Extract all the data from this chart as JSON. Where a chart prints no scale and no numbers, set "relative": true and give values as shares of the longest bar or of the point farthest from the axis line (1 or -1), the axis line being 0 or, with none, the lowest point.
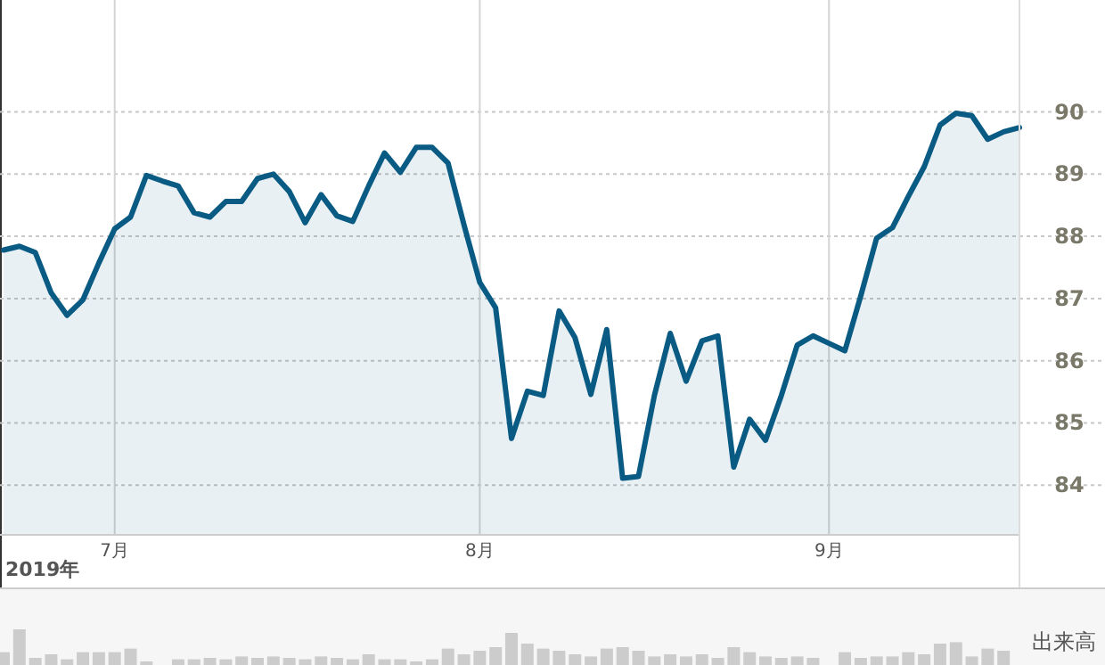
{
  "chart_data": [
    {
      "type": "area",
      "xlabel": "2019年",
      "categories": [
        null,
        null,
        null,
        null,
        null,
        null,
        null,
        "7月",
        null,
        null,
        null,
        null,
        null,
        null,
        null,
        null,
        null,
        null,
        null,
        null,
        null,
        null,
        null,
        null,
        null,
        null,
        null,
        null,
        null,
        null,
        "8月",
        null,
        null,
        null,
        null,
        null,
        null,
        null,
        null,
        null,
        null,
        null,
        null,
        null,
        null,
        null,
        null,
        null,
        null,
        null,
        null,
        null,
        "9月",
        null,
        null,
        null,
        null,
        null,
        null,
        null,
        null,
        null,
        null,
        null,
        null
      ],
      "series": [
        {
          "color": "#0a5b83",
          "values": [
            87.78,
            87.84,
            87.74,
            87.09,
            86.73,
            86.98,
            87.57,
            88.12,
            88.31,
            88.98,
            88.89,
            88.81,
            88.38,
            88.31,
            88.56,
            88.56,
            88.93,
            89.0,
            88.72,
            88.22,
            88.67,
            88.33,
            88.24,
            88.81,
            89.34,
            89.03,
            89.43,
            89.43,
            89.18,
            88.19,
            87.26,
            86.85,
            84.75,
            85.51,
            85.44,
            86.8,
            86.37,
            85.46,
            86.5,
            84.11,
            84.14,
            85.44,
            86.44,
            85.67,
            86.32,
            86.4,
            84.29,
            85.06,
            84.72,
            85.44,
            86.25,
            86.4,
            86.28,
            86.16,
            87.04,
            87.97,
            88.14,
            88.64,
            89.12,
            89.79,
            89.98,
            89.94,
            89.56,
            89.68,
            89.75
          ]
        }
      ],
      "ylim": [
        83.2,
        91.8
      ],
      "yticks": [
        84,
        85,
        86,
        87,
        88,
        89,
        90
      ],
      "grid": true
    },
    {
      "type": "bar",
      "relative": true,
      "ylabel": "出来高",
      "color": "#cccccc",
      "categories": [
        null,
        null,
        null,
        null,
        null,
        null,
        null,
        null,
        null,
        null,
        null,
        null,
        null,
        null,
        null,
        null,
        null,
        null,
        null,
        null,
        null,
        null,
        null,
        null,
        null,
        null,
        null,
        null,
        null,
        null,
        null,
        null,
        null,
        null,
        null,
        null,
        null,
        null,
        null,
        null,
        null,
        null,
        null,
        null,
        null,
        null,
        null,
        null,
        null,
        null,
        null,
        null,
        null,
        null,
        null,
        null,
        null,
        null,
        null,
        null,
        null,
        null,
        null,
        null,
        null
      ],
      "values": [
        0.36,
        1,
        0.2,
        0.3,
        0.16,
        0.36,
        0.36,
        0.36,
        0.46,
        0.1,
        null,
        0.16,
        0.16,
        0.2,
        0.16,
        0.24,
        0.2,
        0.24,
        0.2,
        0.16,
        0.24,
        0.2,
        0.16,
        0.3,
        0.16,
        0.16,
        0.1,
        0.16,
        0.46,
        0.3,
        0.4,
        0.5,
        0.9,
        0.6,
        0.46,
        0.4,
        0.3,
        0.24,
        0.46,
        0.5,
        0.4,
        0.24,
        0.3,
        0.24,
        0.3,
        0.2,
        0.5,
        0.36,
        0.24,
        0.2,
        0.24,
        0.2,
        null,
        0.36,
        0.2,
        0.24,
        0.24,
        0.36,
        0.3,
        0.6,
        0.64,
        0.24,
        0.46,
        0.4,
        null
      ]
    }
  ]
}
